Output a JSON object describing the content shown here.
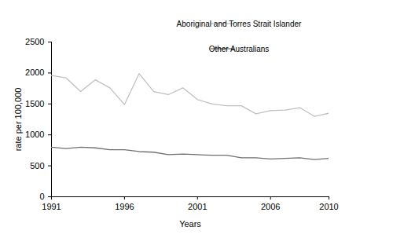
{
  "chart_data": {
    "type": "line",
    "x": [
      1991,
      1992,
      1993,
      1994,
      1995,
      1996,
      1997,
      1998,
      1999,
      2000,
      2001,
      2002,
      2003,
      2004,
      2005,
      2006,
      2007,
      2008,
      2009,
      2010
    ],
    "series": [
      {
        "name": "Aboriginal and Torres Strait Islander",
        "color": "#c0c0c0",
        "values": [
          1960,
          1920,
          1700,
          1890,
          1760,
          1490,
          1990,
          1700,
          1650,
          1760,
          1570,
          1500,
          1470,
          1470,
          1340,
          1390,
          1400,
          1440,
          1300,
          1350
        ]
      },
      {
        "name": "Other Australians",
        "color": "#707070",
        "values": [
          800,
          780,
          800,
          790,
          760,
          760,
          730,
          720,
          680,
          690,
          680,
          670,
          670,
          630,
          630,
          610,
          620,
          630,
          600,
          620
        ]
      }
    ],
    "x_label": "Years",
    "y_label": "rate per 100,000",
    "xlim": [
      1991,
      2010
    ],
    "xticks": [
      1991,
      1996,
      2001,
      2006,
      2010
    ],
    "ylim": [
      0,
      2500
    ],
    "yticks": [
      0,
      500,
      1000,
      1500,
      2000,
      2500
    ],
    "grid": false,
    "legend": "top-right"
  }
}
